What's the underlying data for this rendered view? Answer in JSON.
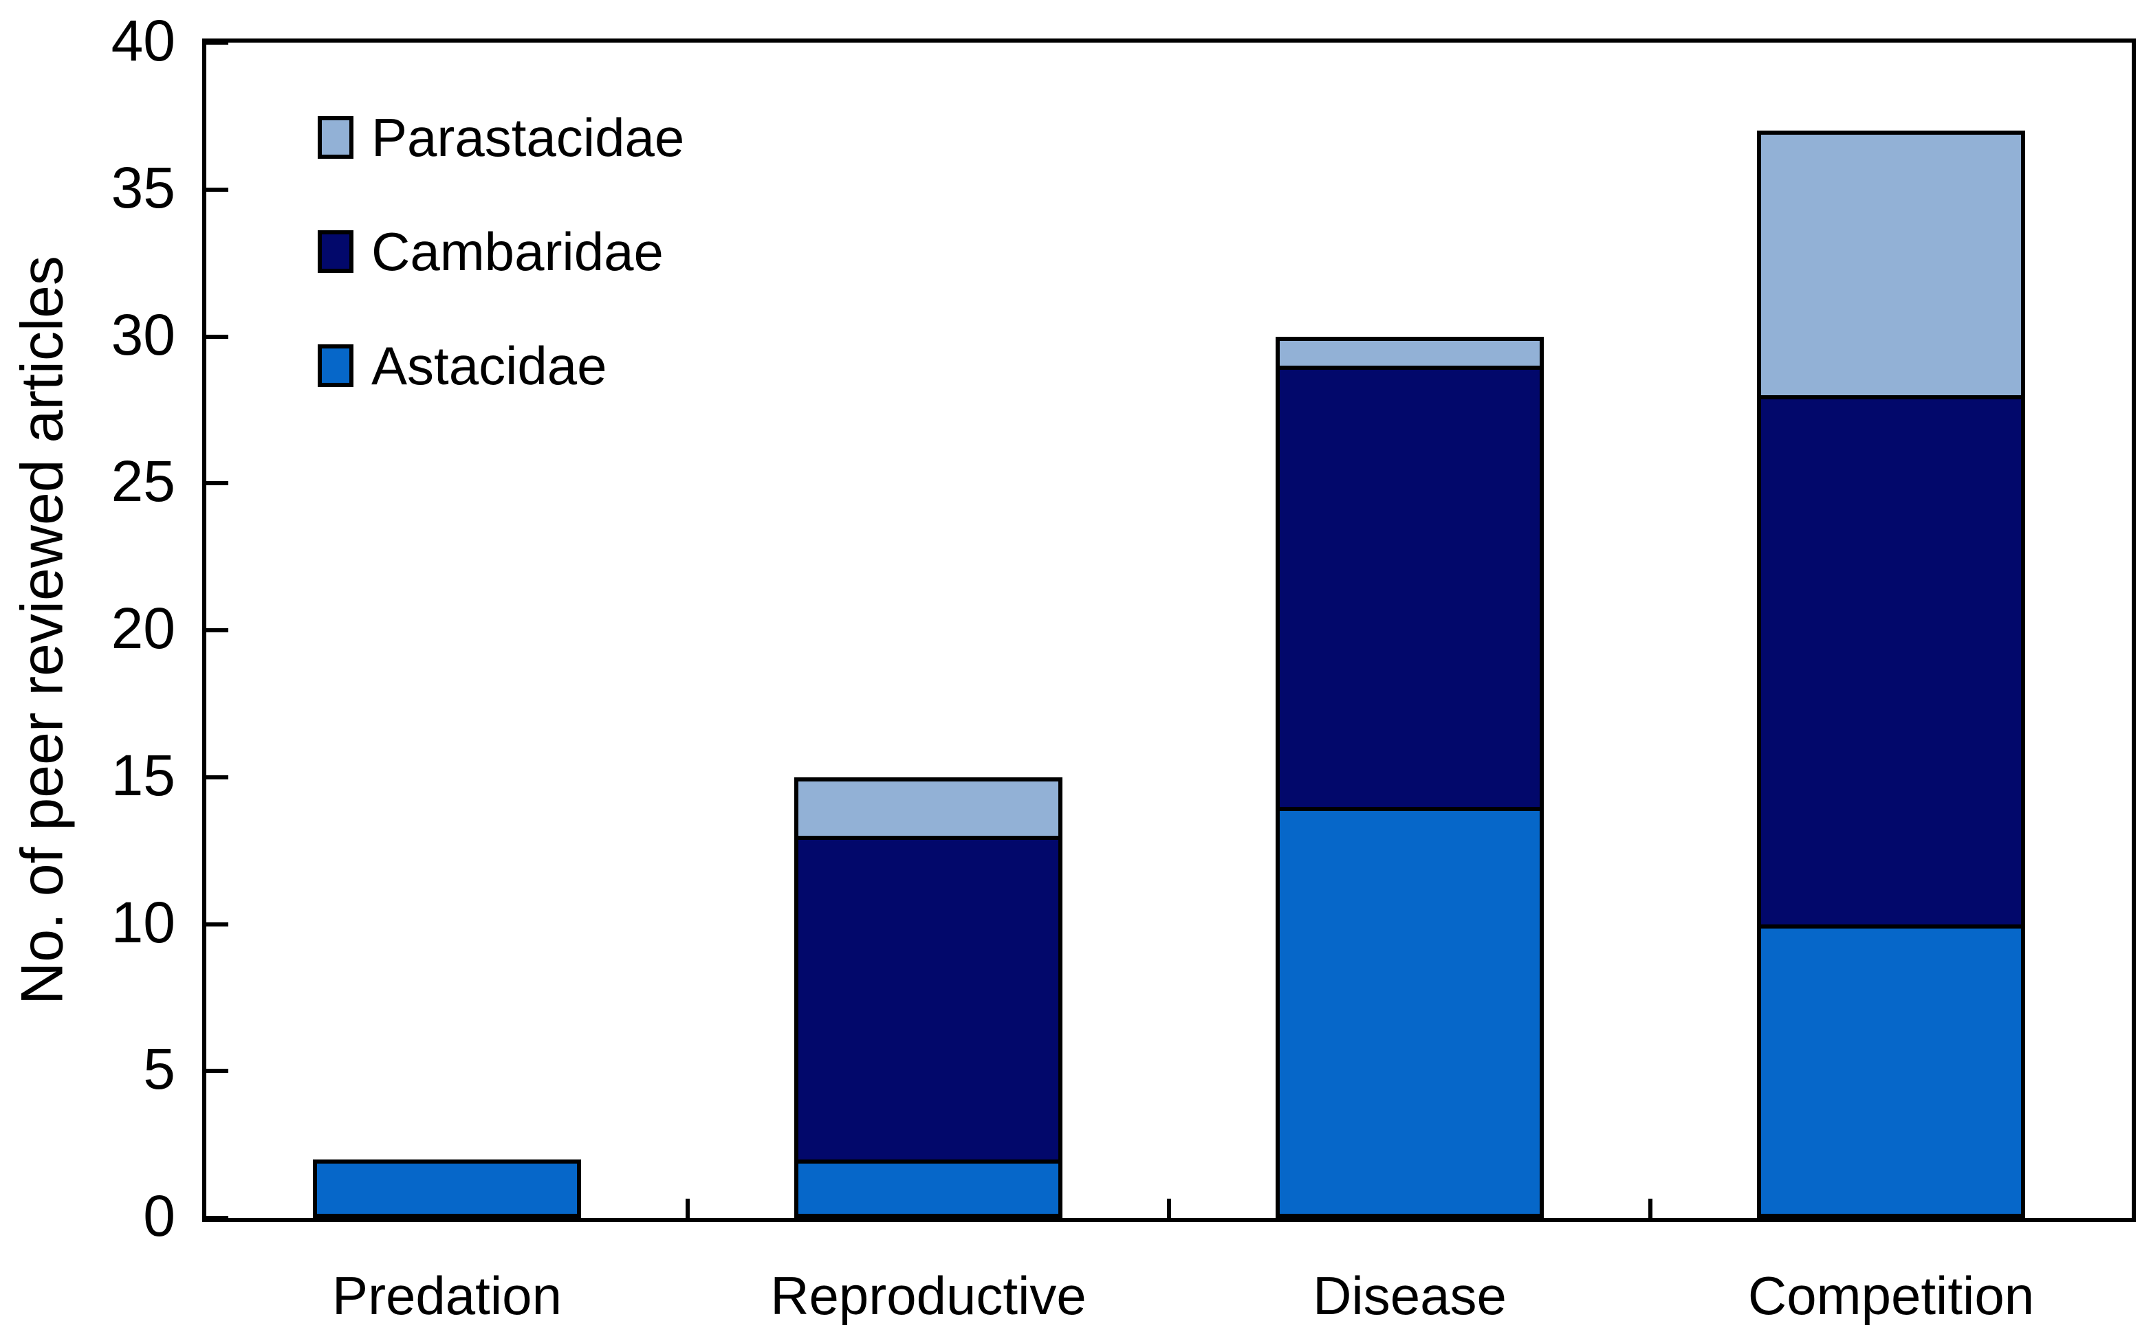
{
  "chart_data": {
    "type": "bar",
    "stacked": true,
    "title": "",
    "xlabel": "",
    "ylabel": "No. of peer reviewed articles",
    "categories": [
      "Predation",
      "Reproductive",
      "Disease",
      "Competition"
    ],
    "series": [
      {
        "name": "Astacidae",
        "color": "#0667c9",
        "values": [
          2,
          2,
          14,
          10
        ]
      },
      {
        "name": "Cambaridae",
        "color": "#02086b",
        "values": [
          0,
          11,
          15,
          18
        ]
      },
      {
        "name": "Parastacidae",
        "color": "#92b1d6",
        "values": [
          0,
          2,
          1,
          9
        ]
      }
    ],
    "stack_totals": [
      2,
      15,
      30,
      37
    ],
    "ylim": [
      0,
      40
    ],
    "yticks": [
      0,
      5,
      10,
      15,
      20,
      25,
      30,
      35,
      40
    ],
    "grid": "off",
    "legend_position": "top-left-inside",
    "legend_order": [
      "Parastacidae",
      "Cambaridae",
      "Astacidae"
    ],
    "bar_outline_color": "#000000",
    "axis_color": "#000000",
    "background_color": "#ffffff"
  }
}
